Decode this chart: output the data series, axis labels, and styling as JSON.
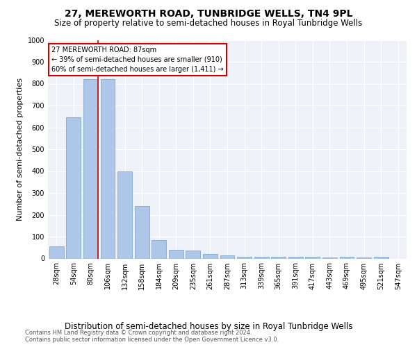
{
  "title": "27, MEREWORTH ROAD, TUNBRIDGE WELLS, TN4 9PL",
  "subtitle": "Size of property relative to semi-detached houses in Royal Tunbridge Wells",
  "xlabel_bottom": "Distribution of semi-detached houses by size in Royal Tunbridge Wells",
  "ylabel": "Number of semi-detached properties",
  "footer_line1": "Contains HM Land Registry data © Crown copyright and database right 2024.",
  "footer_line2": "Contains public sector information licensed under the Open Government Licence v3.0.",
  "categories": [
    "28sqm",
    "54sqm",
    "80sqm",
    "106sqm",
    "132sqm",
    "158sqm",
    "184sqm",
    "209sqm",
    "235sqm",
    "261sqm",
    "287sqm",
    "313sqm",
    "339sqm",
    "365sqm",
    "391sqm",
    "417sqm",
    "443sqm",
    "469sqm",
    "495sqm",
    "521sqm",
    "547sqm"
  ],
  "values": [
    57,
    645,
    820,
    820,
    400,
    240,
    85,
    40,
    35,
    20,
    15,
    8,
    8,
    8,
    8,
    8,
    5,
    8,
    5,
    8,
    0
  ],
  "bar_color": "#aec6e8",
  "bar_edge_color": "#6fa0cc",
  "vline_bar_index": 2,
  "vline_color": "#cc0000",
  "annotation_title": "27 MEREWORTH ROAD: 87sqm",
  "annotation_line1": "← 39% of semi-detached houses are smaller (910)",
  "annotation_line2": "60% of semi-detached houses are larger (1,411) →",
  "annotation_box_color": "#cc0000",
  "ylim": [
    0,
    1000
  ],
  "yticks": [
    0,
    100,
    200,
    300,
    400,
    500,
    600,
    700,
    800,
    900,
    1000
  ],
  "background_color": "#eef2f8",
  "title_fontsize": 10,
  "subtitle_fontsize": 8.5,
  "ylabel_fontsize": 8,
  "tick_fontsize": 7,
  "xlabel_bottom_fontsize": 8.5,
  "footer_fontsize": 6,
  "annotation_fontsize": 7
}
